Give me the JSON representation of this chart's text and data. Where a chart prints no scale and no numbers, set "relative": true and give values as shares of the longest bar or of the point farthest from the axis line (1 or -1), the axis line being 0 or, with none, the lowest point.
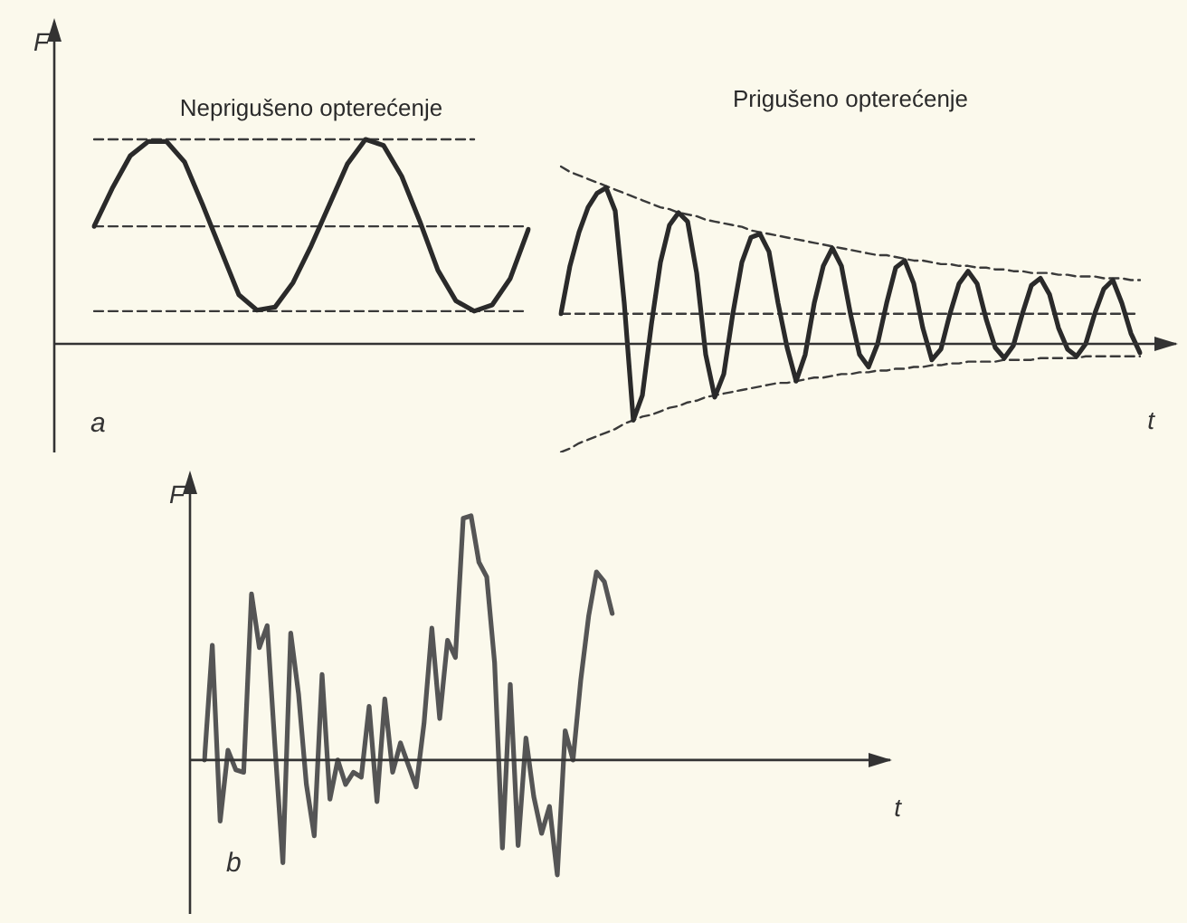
{
  "chart_data": [
    {
      "type": "line",
      "relative": true,
      "ylabel": "F",
      "annotations": [
        "a"
      ],
      "marker": "none",
      "categories": [
        null,
        null,
        null,
        null,
        null,
        null,
        null,
        null,
        null,
        null,
        null,
        null,
        null,
        null,
        null,
        null,
        null,
        null,
        null,
        null,
        null,
        null,
        null,
        null,
        null
      ],
      "series": [
        {
          "name": "Neprigušeno opterećenje",
          "color": "#2a2a2a",
          "values": [
            0.575,
            0.76,
            0.92,
            0.99,
            0.99,
            0.89,
            0.68,
            0.46,
            0.24,
            0.165,
            0.18,
            0.3,
            0.48,
            0.68,
            0.88,
            1,
            0.97,
            0.82,
            0.6,
            0.36,
            0.21,
            0.16,
            0.19,
            0.32,
            0.56
          ]
        },
        {
          "color": "#3a3a3a",
          "line_style": "dashed",
          "values": [
            1,
            1,
            1,
            1,
            1,
            1,
            1,
            1,
            1,
            1,
            1,
            1,
            1,
            1,
            1,
            1,
            1,
            1,
            1,
            1,
            1,
            1,
            null,
            null,
            null
          ]
        },
        {
          "color": "#3a3a3a",
          "line_style": "dashed",
          "values": [
            0.575,
            0.575,
            0.575,
            0.575,
            0.575,
            0.575,
            0.575,
            0.575,
            0.575,
            0.575,
            0.575,
            0.575,
            0.575,
            0.575,
            0.575,
            0.575,
            0.575,
            0.575,
            0.575,
            0.575,
            0.575,
            0.575,
            0.575,
            0.575,
            0.575
          ]
        },
        {
          "color": "#3a3a3a",
          "line_style": "dashed",
          "values": [
            0.16,
            0.16,
            0.16,
            0.16,
            0.16,
            0.16,
            0.16,
            0.16,
            0.16,
            0.16,
            0.16,
            0.16,
            0.16,
            0.16,
            0.16,
            0.16,
            0.16,
            0.16,
            0.16,
            0.16,
            0.16,
            0.16,
            0.16,
            0.16,
            0.16
          ]
        }
      ]
    },
    {
      "type": "line",
      "relative": true,
      "xlabel": "t",
      "marker": "none",
      "categories": [
        null,
        null,
        null,
        null,
        null,
        null,
        null,
        null,
        null,
        null,
        null,
        null,
        null,
        null,
        null,
        null,
        null,
        null,
        null,
        null,
        null,
        null,
        null,
        null,
        null,
        null,
        null,
        null,
        null,
        null,
        null,
        null,
        null,
        null,
        null,
        null,
        null,
        null,
        null,
        null,
        null,
        null,
        null,
        null,
        null,
        null,
        null,
        null,
        null,
        null,
        null,
        null,
        null,
        null,
        null,
        null,
        null,
        null,
        null,
        null,
        null,
        null,
        null,
        null,
        null
      ],
      "series": [
        {
          "name": "Prigušeno opterećenje",
          "color": "#2a2a2a",
          "values": [
            0.17,
            0.44,
            0.63,
            0.77,
            0.85,
            0.88,
            0.75,
            0.23,
            -0.43,
            -0.29,
            0.11,
            0.46,
            0.67,
            0.74,
            0.69,
            0.4,
            -0.06,
            -0.3,
            -0.17,
            0.17,
            0.46,
            0.6,
            0.62,
            0.52,
            0.23,
            -0.02,
            -0.21,
            -0.06,
            0.23,
            0.44,
            0.54,
            0.44,
            0.17,
            -0.06,
            -0.13,
            0,
            0.23,
            0.43,
            0.47,
            0.34,
            0.09,
            -0.09,
            -0.03,
            0.17,
            0.34,
            0.41,
            0.34,
            0.14,
            -0.02,
            -0.08,
            -0.01,
            0.17,
            0.33,
            0.37,
            0.28,
            0.09,
            -0.03,
            -0.07,
            0,
            0.17,
            0.31,
            0.36,
            0.23,
            0.06,
            -0.05
          ]
        },
        {
          "color": "#3a3a3a",
          "line_style": "dashed",
          "values": [
            1,
            0.97,
            0.95,
            0.93,
            0.91,
            0.89,
            0.87,
            0.85,
            0.83,
            0.81,
            0.79,
            0.77,
            0.76,
            0.74,
            0.73,
            0.72,
            0.7,
            0.69,
            0.68,
            0.67,
            0.66,
            0.64,
            0.63,
            0.62,
            0.61,
            0.6,
            0.59,
            0.58,
            0.57,
            0.56,
            0.55,
            0.54,
            0.53,
            0.52,
            0.51,
            0.5,
            0.5,
            0.49,
            0.48,
            0.47,
            0.47,
            0.46,
            0.45,
            0.45,
            0.44,
            0.44,
            0.43,
            0.43,
            0.42,
            0.42,
            0.41,
            0.41,
            0.4,
            0.4,
            0.4,
            0.39,
            0.39,
            0.38,
            0.38,
            0.38,
            0.37,
            0.37,
            0.37,
            0.36,
            0.36
          ]
        },
        {
          "color": "#3a3a3a",
          "line_style": "dashed",
          "values": [
            -0.61,
            -0.59,
            -0.56,
            -0.54,
            -0.52,
            -0.5,
            -0.48,
            -0.45,
            -0.43,
            -0.41,
            -0.4,
            -0.38,
            -0.36,
            -0.35,
            -0.33,
            -0.32,
            -0.3,
            -0.29,
            -0.28,
            -0.27,
            -0.26,
            -0.25,
            -0.24,
            -0.23,
            -0.22,
            -0.22,
            -0.21,
            -0.2,
            -0.19,
            -0.19,
            -0.18,
            -0.17,
            -0.17,
            -0.16,
            -0.16,
            -0.15,
            -0.15,
            -0.14,
            -0.14,
            -0.13,
            -0.13,
            -0.12,
            -0.12,
            -0.11,
            -0.11,
            -0.1,
            -0.1,
            -0.1,
            -0.1,
            -0.09,
            -0.09,
            -0.09,
            -0.09,
            -0.08,
            -0.08,
            -0.08,
            -0.08,
            -0.08,
            -0.07,
            -0.07,
            -0.07,
            -0.07,
            -0.07,
            -0.07,
            -0.07
          ]
        },
        {
          "color": "#3a3a3a",
          "line_style": "dashed",
          "values": [
            0.17,
            0.17,
            0.17,
            0.17,
            0.17,
            0.17,
            0.17,
            0.17,
            0.17,
            0.17,
            0.17,
            0.17,
            0.17,
            0.17,
            0.17,
            0.17,
            0.17,
            0.17,
            0.17,
            0.17,
            0.17,
            0.17,
            0.17,
            0.17,
            0.17,
            0.17,
            0.17,
            0.17,
            0.17,
            0.17,
            0.17,
            0.17,
            0.17,
            0.17,
            0.17,
            0.17,
            0.17,
            0.17,
            0.17,
            0.17,
            0.17,
            0.17,
            0.17,
            0.17,
            0.17,
            0.17,
            0.17,
            0.17,
            0.17,
            0.17,
            0.17,
            0.17,
            0.17,
            0.17,
            0.17,
            0.17,
            0.17,
            0.17,
            0.17,
            0.17,
            0.17,
            0.17,
            0.17,
            0.17,
            0.17
          ]
        }
      ]
    },
    {
      "type": "line",
      "relative": true,
      "xlabel": "t",
      "ylabel": "F",
      "annotations": [
        "b"
      ],
      "marker": "none",
      "categories": [
        null,
        null,
        null,
        null,
        null,
        null,
        null,
        null,
        null,
        null,
        null,
        null,
        null,
        null,
        null,
        null,
        null,
        null,
        null,
        null,
        null,
        null,
        null,
        null,
        null,
        null,
        null,
        null,
        null,
        null,
        null,
        null,
        null,
        null,
        null,
        null,
        null,
        null,
        null,
        null,
        null,
        null,
        null,
        null,
        null,
        null,
        null,
        null,
        null,
        null,
        null,
        null,
        null,
        null,
        null,
        null,
        null,
        null,
        null,
        null,
        null,
        null,
        null,
        null,
        null,
        null,
        null,
        null,
        null,
        null,
        null,
        null,
        null,
        null,
        null,
        null,
        null,
        null,
        null,
        null,
        null,
        null,
        null,
        null,
        null,
        null,
        null,
        null
      ],
      "series": [
        {
          "color": "#555555",
          "values": [
            0,
            0.47,
            -0.25,
            0.04,
            -0.04,
            -0.05,
            0.68,
            0.46,
            0.55,
            0.05,
            -0.42,
            0.52,
            0.27,
            -0.1,
            -0.31,
            0.35,
            -0.16,
            0,
            -0.1,
            -0.05,
            -0.07,
            0.22,
            -0.17,
            0.25,
            -0.05,
            0.07,
            -0.02,
            -0.11,
            0.15,
            0.54,
            0.17,
            0.49,
            0.42,
            0.99,
            1,
            0.81,
            0.75,
            0.4,
            -0.36,
            0.31,
            -0.35,
            0.09,
            -0.15,
            -0.3,
            -0.19,
            -0.47,
            0.12,
            0,
            0.33,
            0.59,
            0.77,
            0.73,
            0.6,
            null,
            null,
            null,
            null,
            null,
            null,
            null,
            null,
            null,
            null,
            null,
            null,
            null,
            null,
            null,
            null,
            null,
            null,
            null,
            null,
            null,
            null,
            null,
            null,
            null,
            null,
            null,
            null,
            null,
            null,
            null,
            null,
            null,
            null,
            null
          ]
        }
      ]
    }
  ]
}
